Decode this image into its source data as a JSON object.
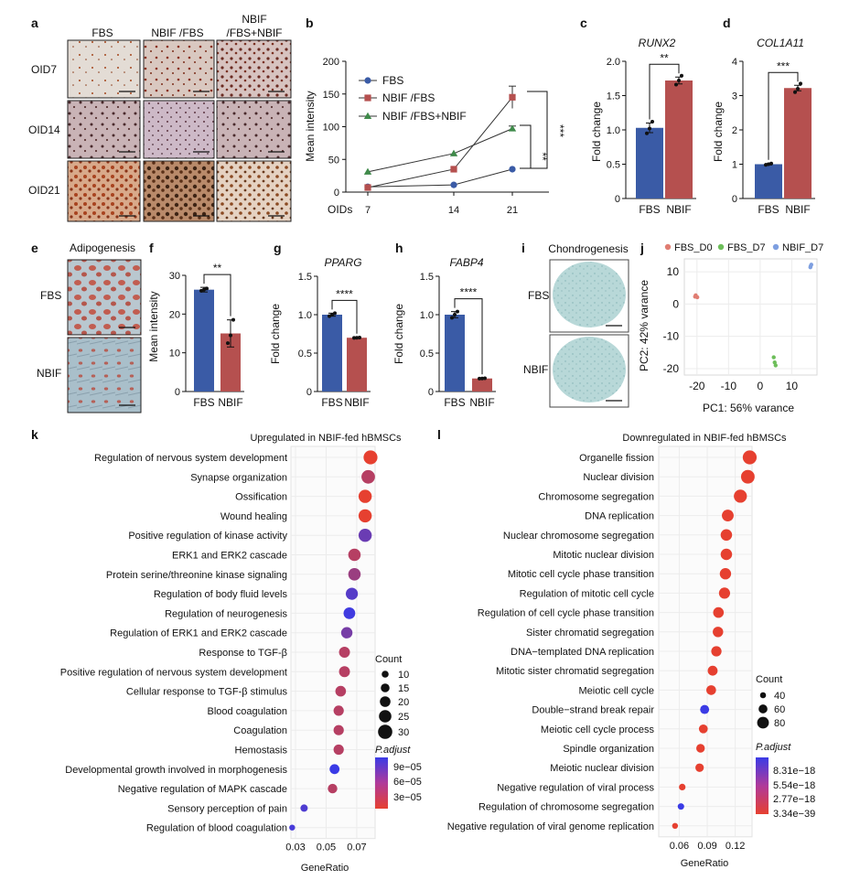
{
  "panels": {
    "a": {
      "letter": "a",
      "columns": [
        "FBS",
        "NBIF /FBS",
        "NBIF\n/FBS+NBIF"
      ],
      "rows": [
        "OID7",
        "OID14",
        "OID21"
      ]
    },
    "e": {
      "letter": "e",
      "title": "Adipogenesis",
      "rows": [
        "FBS",
        "NBIF"
      ]
    },
    "i": {
      "letter": "i",
      "title": "Chondrogenesis",
      "rows": [
        "FBS",
        "NBIF"
      ]
    }
  },
  "colors": {
    "fbs": "#3a5ba6",
    "nbif": "#b5504f",
    "nbif2": "#3f8a4a",
    "pca_d0": "#e07d72",
    "pca_d7": "#6dbe5a",
    "pca_nbif": "#7e9fe0"
  },
  "chart_data": [
    {
      "id": "b",
      "letter": "b",
      "type": "line",
      "xlabel": "OIDs",
      "ylabel": "Mean intensity",
      "x": [
        7,
        14,
        21
      ],
      "ylim": [
        0,
        200
      ],
      "yticks": [
        0,
        50,
        100,
        150,
        200
      ],
      "series": [
        {
          "name": "FBS",
          "values": [
            8,
            11,
            35
          ],
          "err": [
            0,
            0,
            0
          ],
          "marker": "circle"
        },
        {
          "name": "NBIF /FBS",
          "values": [
            7,
            35,
            145
          ],
          "err": [
            0,
            0,
            17
          ],
          "marker": "square"
        },
        {
          "name": "NBIF /FBS+NBIF",
          "values": [
            31,
            59,
            97
          ],
          "err": [
            0,
            0,
            4
          ],
          "marker": "triangle"
        }
      ],
      "annotations": [
        "***",
        "**"
      ]
    },
    {
      "id": "c",
      "letter": "c",
      "type": "bar",
      "title": "RUNX2",
      "ylabel": "Fold change",
      "categories": [
        "FBS",
        "NBIF"
      ],
      "values": [
        1.03,
        1.72
      ],
      "err": [
        0.07,
        0.05
      ],
      "points": [
        [
          0.95,
          1.02,
          1.12
        ],
        [
          1.66,
          1.72,
          1.79
        ]
      ],
      "ylim": [
        0,
        2
      ],
      "yticks": [
        "0",
        "0.5",
        "1.0",
        "1.5",
        "2.0"
      ],
      "significance": "**"
    },
    {
      "id": "d",
      "letter": "d",
      "type": "bar",
      "title": "COL1A11",
      "ylabel": "Fold change",
      "categories": [
        "FBS",
        "NBIF"
      ],
      "values": [
        1.0,
        3.22
      ],
      "err": [
        0.02,
        0.08
      ],
      "points": [
        [
          0.98,
          1.0,
          1.02
        ],
        [
          3.1,
          3.2,
          3.35
        ]
      ],
      "ylim": [
        0,
        4
      ],
      "yticks": [
        "0",
        "1",
        "2",
        "3",
        "4"
      ],
      "significance": "***"
    },
    {
      "id": "f",
      "letter": "f",
      "type": "bar",
      "title": "",
      "ylabel": "Mean intensity",
      "categories": [
        "FBS",
        "NBIF"
      ],
      "values": [
        26.3,
        15.0
      ],
      "err": [
        0.6,
        3.5
      ],
      "points": [
        [
          26.0,
          26.3,
          26.6
        ],
        [
          12.5,
          14.5,
          18.5
        ]
      ],
      "ylim": [
        0,
        30
      ],
      "yticks": [
        "0",
        "10",
        "20",
        "30"
      ],
      "significance": "**"
    },
    {
      "id": "g",
      "letter": "g",
      "type": "bar",
      "title": "PPARG",
      "ylabel": "Fold change",
      "categories": [
        "FBS",
        "NBIF"
      ],
      "values": [
        1.0,
        0.7
      ],
      "err": [
        0.02,
        0.005
      ],
      "points": [
        [
          0.98,
          1.0,
          1.02
        ],
        [
          0.698,
          0.7,
          0.703
        ]
      ],
      "ylim": [
        0,
        1.5
      ],
      "yticks": [
        "0",
        "0.5",
        "1.0",
        "1.5"
      ],
      "significance": "****"
    },
    {
      "id": "h",
      "letter": "h",
      "type": "bar",
      "title": "FABP4",
      "ylabel": "Fold change",
      "categories": [
        "FBS",
        "NBIF"
      ],
      "values": [
        1.0,
        0.17
      ],
      "err": [
        0.04,
        0.005
      ],
      "points": [
        [
          0.96,
          1.0,
          1.04
        ],
        [
          0.168,
          0.17,
          0.173
        ]
      ],
      "ylim": [
        0,
        1.5
      ],
      "yticks": [
        "0",
        "0.5",
        "1.0",
        "1.5"
      ],
      "significance": "****"
    },
    {
      "id": "j",
      "letter": "j",
      "type": "scatter",
      "xlabel": "PC1: 56% varance",
      "ylabel": "PC2: 42% varance",
      "xlim": [
        -24,
        18
      ],
      "ylim": [
        -22,
        14
      ],
      "xticks": [
        -20,
        -10,
        0,
        10
      ],
      "yticks": [
        -20,
        -10,
        0,
        10
      ],
      "series": [
        {
          "name": "FBS_D0",
          "points": [
            [
              -20.4,
              2.7
            ],
            [
              -19.9,
              2.1
            ],
            [
              -20.6,
              2.3
            ]
          ]
        },
        {
          "name": "FBS_D7",
          "points": [
            [
              4.3,
              -16.5
            ],
            [
              4.6,
              -18.1
            ],
            [
              4.9,
              -19.0
            ]
          ]
        },
        {
          "name": "NBIF_D7",
          "points": [
            [
              15.9,
              11.4
            ],
            [
              16.2,
              12.2
            ],
            [
              16.0,
              11.8
            ]
          ]
        }
      ]
    },
    {
      "id": "k",
      "letter": "k",
      "type": "scatter",
      "title": "Upregulated in NBIF-fed hBMSCs",
      "xlabel": "GeneRatio",
      "xlim": [
        0.027,
        0.082
      ],
      "xticks": [
        0.03,
        0.05,
        0.07
      ],
      "xtick_labels": [
        "0.03",
        "0.05",
        "0.07"
      ],
      "terms": [
        {
          "label": "Regulation of nervous system development",
          "ratio": 0.079,
          "count": 29,
          "padj": 1e-05
        },
        {
          "label": "Synapse organization",
          "ratio": 0.0775,
          "count": 28,
          "padj": 2e-05
        },
        {
          "label": "Ossification",
          "ratio": 0.0755,
          "count": 27,
          "padj": 1e-05
        },
        {
          "label": "Wound healing",
          "ratio": 0.0755,
          "count": 27,
          "padj": 1e-05
        },
        {
          "label": "Positive regulation of kinase activity",
          "ratio": 0.0755,
          "count": 27,
          "padj": 6e-05
        },
        {
          "label": "ERK1 and ERK2 cascade",
          "ratio": 0.0685,
          "count": 25,
          "padj": 2e-05
        },
        {
          "label": "Protein serine/threonine kinase signaling",
          "ratio": 0.0685,
          "count": 25,
          "padj": 3e-05
        },
        {
          "label": "Regulation of body fluid levels",
          "ratio": 0.0668,
          "count": 24,
          "padj": 8e-05
        },
        {
          "label": "Regulation of neurogenesis",
          "ratio": 0.0652,
          "count": 23,
          "padj": 0.00011
        },
        {
          "label": "Regulation of ERK1 and ERK2 cascade",
          "ratio": 0.0635,
          "count": 22,
          "padj": 5e-05
        },
        {
          "label": "Response to TGF-β",
          "ratio": 0.062,
          "count": 21,
          "padj": 2e-05
        },
        {
          "label": "Positive regulation of nervous system development",
          "ratio": 0.062,
          "count": 21,
          "padj": 2e-05
        },
        {
          "label": "Cellular response to TGF-β stimulus",
          "ratio": 0.0595,
          "count": 20,
          "padj": 2e-05
        },
        {
          "label": "Blood coagulation",
          "ratio": 0.0582,
          "count": 19,
          "padj": 2e-05
        },
        {
          "label": "Coagulation",
          "ratio": 0.0582,
          "count": 19,
          "padj": 2e-05
        },
        {
          "label": "Hemostasis",
          "ratio": 0.0582,
          "count": 19,
          "padj": 2e-05
        },
        {
          "label": "Developmental growth involved in morphogenesis",
          "ratio": 0.0555,
          "count": 18,
          "padj": 0.00012
        },
        {
          "label": "Negative regulation of MAPK cascade",
          "ratio": 0.0542,
          "count": 17,
          "padj": 2e-05
        },
        {
          "label": "Sensory perception of pain",
          "ratio": 0.0356,
          "count": 11,
          "padj": 9e-05
        },
        {
          "label": "Regulation of blood coagulation",
          "ratio": 0.0278,
          "count": 7,
          "padj": 0.0001
        }
      ],
      "count_legend": {
        "title": "Count",
        "values": [
          10,
          15,
          20,
          25,
          30
        ]
      },
      "padj_legend": {
        "title": "P.adjust",
        "labels": [
          "9e−05",
          "6e−05",
          "3e−05"
        ],
        "low_color": "#e64030",
        "high_color": "#3a3be6"
      }
    },
    {
      "id": "l",
      "letter": "l",
      "type": "scatter",
      "title": "Downregulated in NBIF-fed hBMSCs",
      "xlabel": "GeneRatio",
      "xlim": [
        0.038,
        0.138
      ],
      "xticks": [
        0.06,
        0.09,
        0.12
      ],
      "xtick_labels": [
        "0.06",
        "0.09",
        "0.12"
      ],
      "terms": [
        {
          "label": "Organelle fission",
          "ratio": 0.1355,
          "count": 95,
          "padj": 1e-39
        },
        {
          "label": "Nuclear division",
          "ratio": 0.1335,
          "count": 93,
          "padj": 1e-39
        },
        {
          "label": "Chromosome segregation",
          "ratio": 0.1255,
          "count": 89,
          "padj": 1e-39
        },
        {
          "label": "DNA replication",
          "ratio": 0.112,
          "count": 80,
          "padj": 1e-39
        },
        {
          "label": "Nuclear chromosome segregation",
          "ratio": 0.1105,
          "count": 78,
          "padj": 1e-39
        },
        {
          "label": "Mitotic nuclear division",
          "ratio": 0.1105,
          "count": 78,
          "padj": 1e-39
        },
        {
          "label": "Mitotic cell cycle phase transition",
          "ratio": 0.1095,
          "count": 77,
          "padj": 1e-39
        },
        {
          "label": "Regulation of mitotic cell cycle",
          "ratio": 0.1085,
          "count": 76,
          "padj": 1e-39
        },
        {
          "label": "Regulation of cell cycle phase transition",
          "ratio": 0.102,
          "count": 72,
          "padj": 1e-39
        },
        {
          "label": "Sister chromatid segregation",
          "ratio": 0.1015,
          "count": 71,
          "padj": 1e-39
        },
        {
          "label": "DNA−templated DNA replication",
          "ratio": 0.0998,
          "count": 70,
          "padj": 1e-39
        },
        {
          "label": "Mitotic sister chromatid segregation",
          "ratio": 0.0958,
          "count": 67,
          "padj": 1e-39
        },
        {
          "label": "Meiotic cell cycle",
          "ratio": 0.0942,
          "count": 66,
          "padj": 1e-39
        },
        {
          "label": "Double−strand break repair",
          "ratio": 0.0872,
          "count": 61,
          "padj": 6.5e-18
        },
        {
          "label": "Meiotic cell cycle process",
          "ratio": 0.0858,
          "count": 60,
          "padj": 1e-39
        },
        {
          "label": "Spindle organization",
          "ratio": 0.0828,
          "count": 58,
          "padj": 1e-39
        },
        {
          "label": "Meiotic nuclear division",
          "ratio": 0.0818,
          "count": 57,
          "padj": 1e-39
        },
        {
          "label": "Negative regulation of viral process",
          "ratio": 0.0632,
          "count": 44,
          "padj": 1e-39
        },
        {
          "label": "Regulation of chromosome segregation",
          "ratio": 0.0618,
          "count": 43,
          "padj": 9e-18
        },
        {
          "label": "Negative regulation of viral genome replication",
          "ratio": 0.0555,
          "count": 39,
          "padj": 1e-39
        }
      ],
      "count_legend": {
        "title": "Count",
        "values": [
          40,
          60,
          80
        ]
      },
      "padj_legend": {
        "title": "P.adjust",
        "labels": [
          "8.31e−18",
          "5.54e−18",
          "2.77e−18",
          "3.34e−39"
        ],
        "low_color": "#e64030",
        "high_color": "#3a3be6"
      }
    }
  ]
}
